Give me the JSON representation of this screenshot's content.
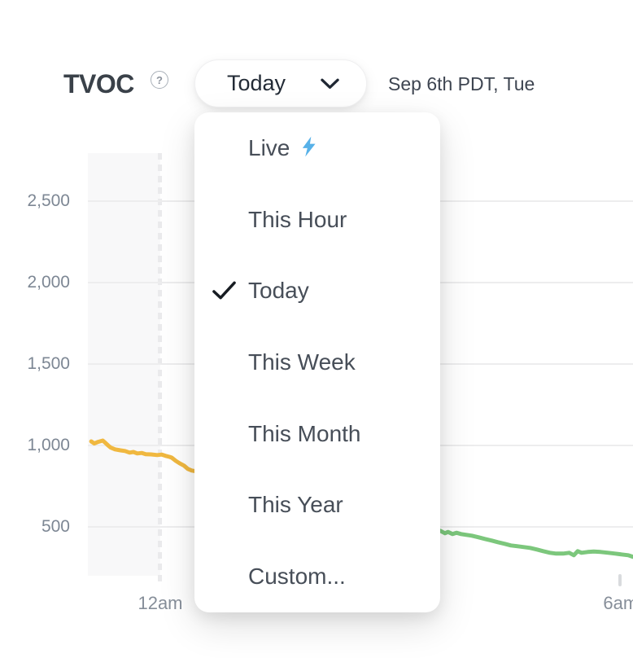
{
  "header": {
    "title": "TVOC",
    "help_icon_symbol": "?",
    "range_selector": {
      "value": "Today"
    },
    "date_label": "Sep 6th PDT, Tue"
  },
  "dropdown_menu": {
    "items": [
      {
        "label": "Live",
        "icon": "lightning-bolt",
        "selected": false
      },
      {
        "label": "This Hour",
        "selected": false
      },
      {
        "label": "Today",
        "selected": true
      },
      {
        "label": "This Week",
        "selected": false
      },
      {
        "label": "This Month",
        "selected": false
      },
      {
        "label": "This Year",
        "selected": false
      },
      {
        "label": "Custom...",
        "selected": false
      }
    ]
  },
  "colors": {
    "accent_blue": "#57B1E8",
    "line_yellow": "#F0B840",
    "line_green": "#7CC77C",
    "gridline": "#ededee",
    "shade": "#f8f8f9"
  },
  "chart_data": {
    "type": "line",
    "title": "TVOC",
    "x_axis": {
      "unit": "hours from midnight",
      "range_hours": [
        -0.95,
        6.16
      ],
      "ticks": [
        {
          "label": "12am",
          "hour": 0
        },
        {
          "label": "6am",
          "hour": 6
        }
      ]
    },
    "y_axis": {
      "range": [
        200,
        2795
      ],
      "gridlines": true,
      "ticks": [
        {
          "label": "500",
          "value": 500
        },
        {
          "label": "1,000",
          "value": 1000
        },
        {
          "label": "1,500",
          "value": 1500
        },
        {
          "label": "2,000",
          "value": 2000
        },
        {
          "label": "2,500",
          "value": 2500
        }
      ]
    },
    "shaded_region_hours": [
      -0.95,
      0
    ],
    "dashed_line_hour": 0,
    "series": [
      {
        "name": "tvoc-moderate-segment",
        "color": "#F0B840",
        "points": [
          [
            -0.9,
            1025
          ],
          [
            -0.86,
            1012
          ],
          [
            -0.81,
            1022
          ],
          [
            -0.75,
            1030
          ],
          [
            -0.72,
            1018
          ],
          [
            -0.68,
            1000
          ],
          [
            -0.65,
            988
          ],
          [
            -0.59,
            976
          ],
          [
            -0.52,
            970
          ],
          [
            -0.46,
            966
          ],
          [
            -0.4,
            956
          ],
          [
            -0.35,
            960
          ],
          [
            -0.3,
            951
          ],
          [
            -0.24,
            954
          ],
          [
            -0.19,
            946
          ],
          [
            -0.12,
            945
          ],
          [
            -0.04,
            941
          ],
          [
            0.02,
            944
          ],
          [
            0.07,
            936
          ],
          [
            0.12,
            930
          ],
          [
            0.15,
            925
          ],
          [
            0.2,
            906
          ],
          [
            0.25,
            891
          ],
          [
            0.31,
            876
          ],
          [
            0.36,
            856
          ],
          [
            0.41,
            846
          ],
          [
            0.47,
            841
          ]
        ]
      },
      {
        "name": "tvoc-good-segment",
        "color": "#7CC77C",
        "points": [
          [
            3.65,
            476
          ],
          [
            3.71,
            461
          ],
          [
            3.75,
            469
          ],
          [
            3.81,
            456
          ],
          [
            3.86,
            464
          ],
          [
            3.92,
            456
          ],
          [
            3.99,
            451
          ],
          [
            4.06,
            446
          ],
          [
            4.15,
            436
          ],
          [
            4.23,
            426
          ],
          [
            4.32,
            416
          ],
          [
            4.4,
            406
          ],
          [
            4.49,
            396
          ],
          [
            4.57,
            386
          ],
          [
            4.66,
            381
          ],
          [
            4.74,
            376
          ],
          [
            4.82,
            371
          ],
          [
            4.91,
            361
          ],
          [
            4.99,
            351
          ],
          [
            5.08,
            341
          ],
          [
            5.16,
            336
          ],
          [
            5.25,
            336
          ],
          [
            5.33,
            341
          ],
          [
            5.39,
            326
          ],
          [
            5.44,
            351
          ],
          [
            5.49,
            341
          ],
          [
            5.57,
            346
          ],
          [
            5.65,
            349
          ],
          [
            5.74,
            346
          ],
          [
            5.84,
            341
          ],
          [
            5.93,
            336
          ],
          [
            6.01,
            331
          ],
          [
            6.1,
            326
          ],
          [
            6.16,
            316
          ]
        ]
      }
    ]
  }
}
